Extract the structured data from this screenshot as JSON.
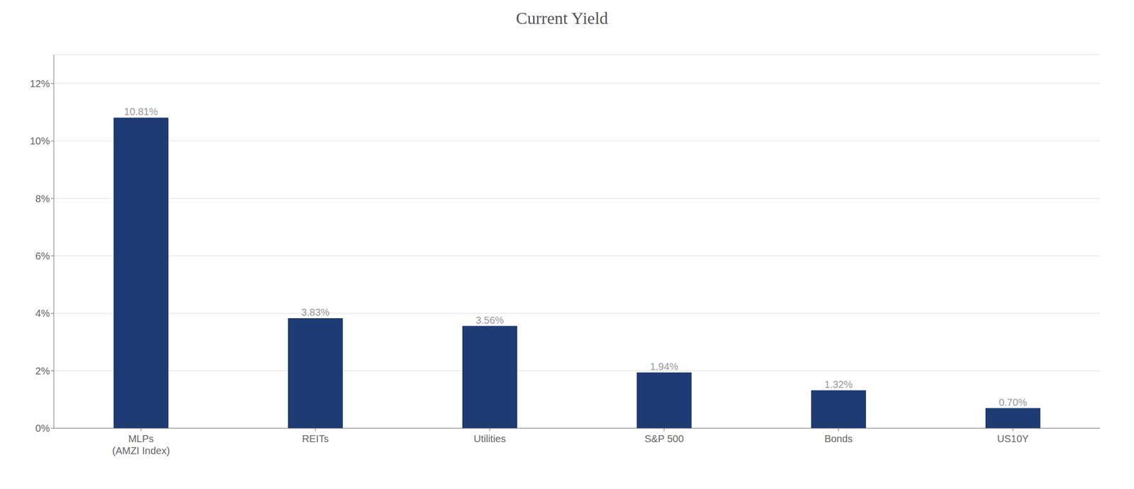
{
  "chart_data": {
    "type": "bar",
    "title": "Current Yield",
    "categories": [
      "MLPs\n(AMZI Index)",
      "REITs",
      "Utilities",
      "S&P 500",
      "Bonds",
      "US10Y"
    ],
    "values": [
      10.81,
      3.83,
      3.56,
      1.94,
      1.32,
      0.7
    ],
    "value_labels": [
      "10.81%",
      "3.83%",
      "3.56%",
      "1.94%",
      "1.32%",
      "0.70%"
    ],
    "color": "#1F3B73",
    "ylim": [
      0,
      13
    ],
    "yticks": [
      {
        "value": 0,
        "label": "0%"
      },
      {
        "value": 2,
        "label": "2%"
      },
      {
        "value": 4,
        "label": "4%"
      },
      {
        "value": 6,
        "label": "6%"
      },
      {
        "value": 8,
        "label": "8%"
      },
      {
        "value": 10,
        "label": "10%"
      },
      {
        "value": 12,
        "label": "12%"
      }
    ],
    "grid": true,
    "data_labels": true
  }
}
